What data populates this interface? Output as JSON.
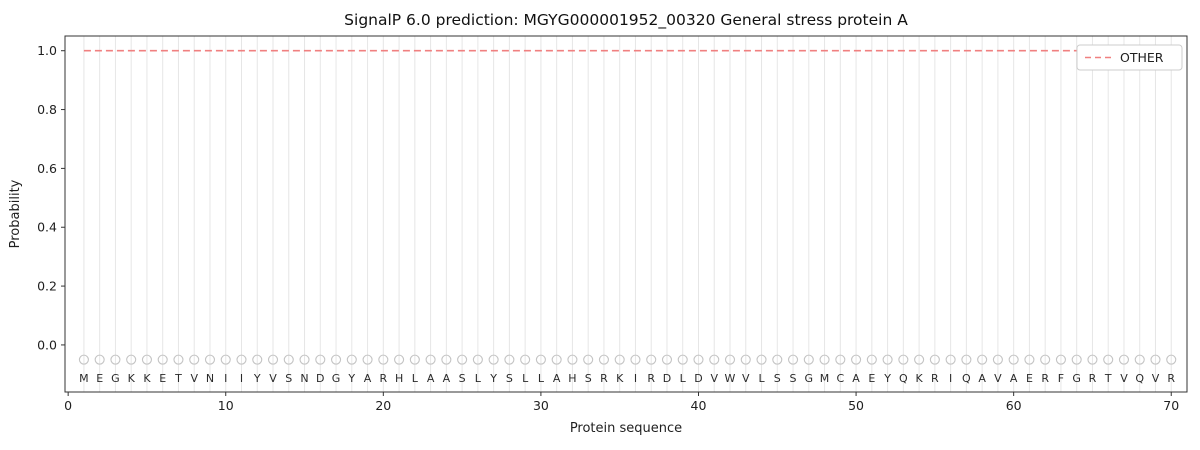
{
  "page": {
    "background": "#ffffff"
  },
  "chart_data": {
    "type": "line",
    "title": "SignalP 6.0 prediction: MGYG000001952_00320 General stress protein A",
    "xlabel": "Protein sequence",
    "ylabel": "Probability",
    "xlim": [
      -0.2,
      71.0
    ],
    "ylim": [
      -0.16,
      1.05
    ],
    "x_ticks": [
      0,
      10,
      20,
      30,
      40,
      50,
      60,
      70
    ],
    "y_ticks": [
      0.0,
      0.2,
      0.4,
      0.6,
      0.8,
      1.0
    ],
    "grid": {
      "vertical_per_residue": true,
      "color": "#e6e6e6"
    },
    "legend": {
      "position": "upper-right",
      "entries": [
        {
          "label": "OTHER",
          "color": "#f08080",
          "style": "dashed"
        }
      ]
    },
    "sequence": "MEGKKETVNIIYVSNDGYARHLAASLYSLLAHSRKIRDLDVWVLSSGMCAEYQKRIQAVAERFGRTVQVR",
    "series": [
      {
        "name": "OTHER",
        "color": "#f08080",
        "line_style": "dashed",
        "x_start": 1,
        "values": [
          1,
          1,
          1,
          1,
          1,
          1,
          1,
          1,
          1,
          1,
          1,
          1,
          1,
          1,
          1,
          1,
          1,
          1,
          1,
          1,
          1,
          1,
          1,
          1,
          1,
          1,
          1,
          1,
          1,
          1,
          1,
          1,
          1,
          1,
          1,
          1,
          1,
          1,
          1,
          1,
          1,
          1,
          1,
          1,
          1,
          1,
          1,
          1,
          1,
          1,
          1,
          1,
          1,
          1,
          1,
          1,
          1,
          1,
          1,
          1,
          1,
          1,
          1,
          1,
          1,
          1,
          1,
          1,
          1,
          1
        ]
      }
    ],
    "markers": {
      "y": -0.05,
      "shape": "open-circle",
      "color": "#c4c4c4"
    },
    "letters_y": -0.112,
    "axis_color": "#333333",
    "text_color": "#1f1f1f"
  }
}
